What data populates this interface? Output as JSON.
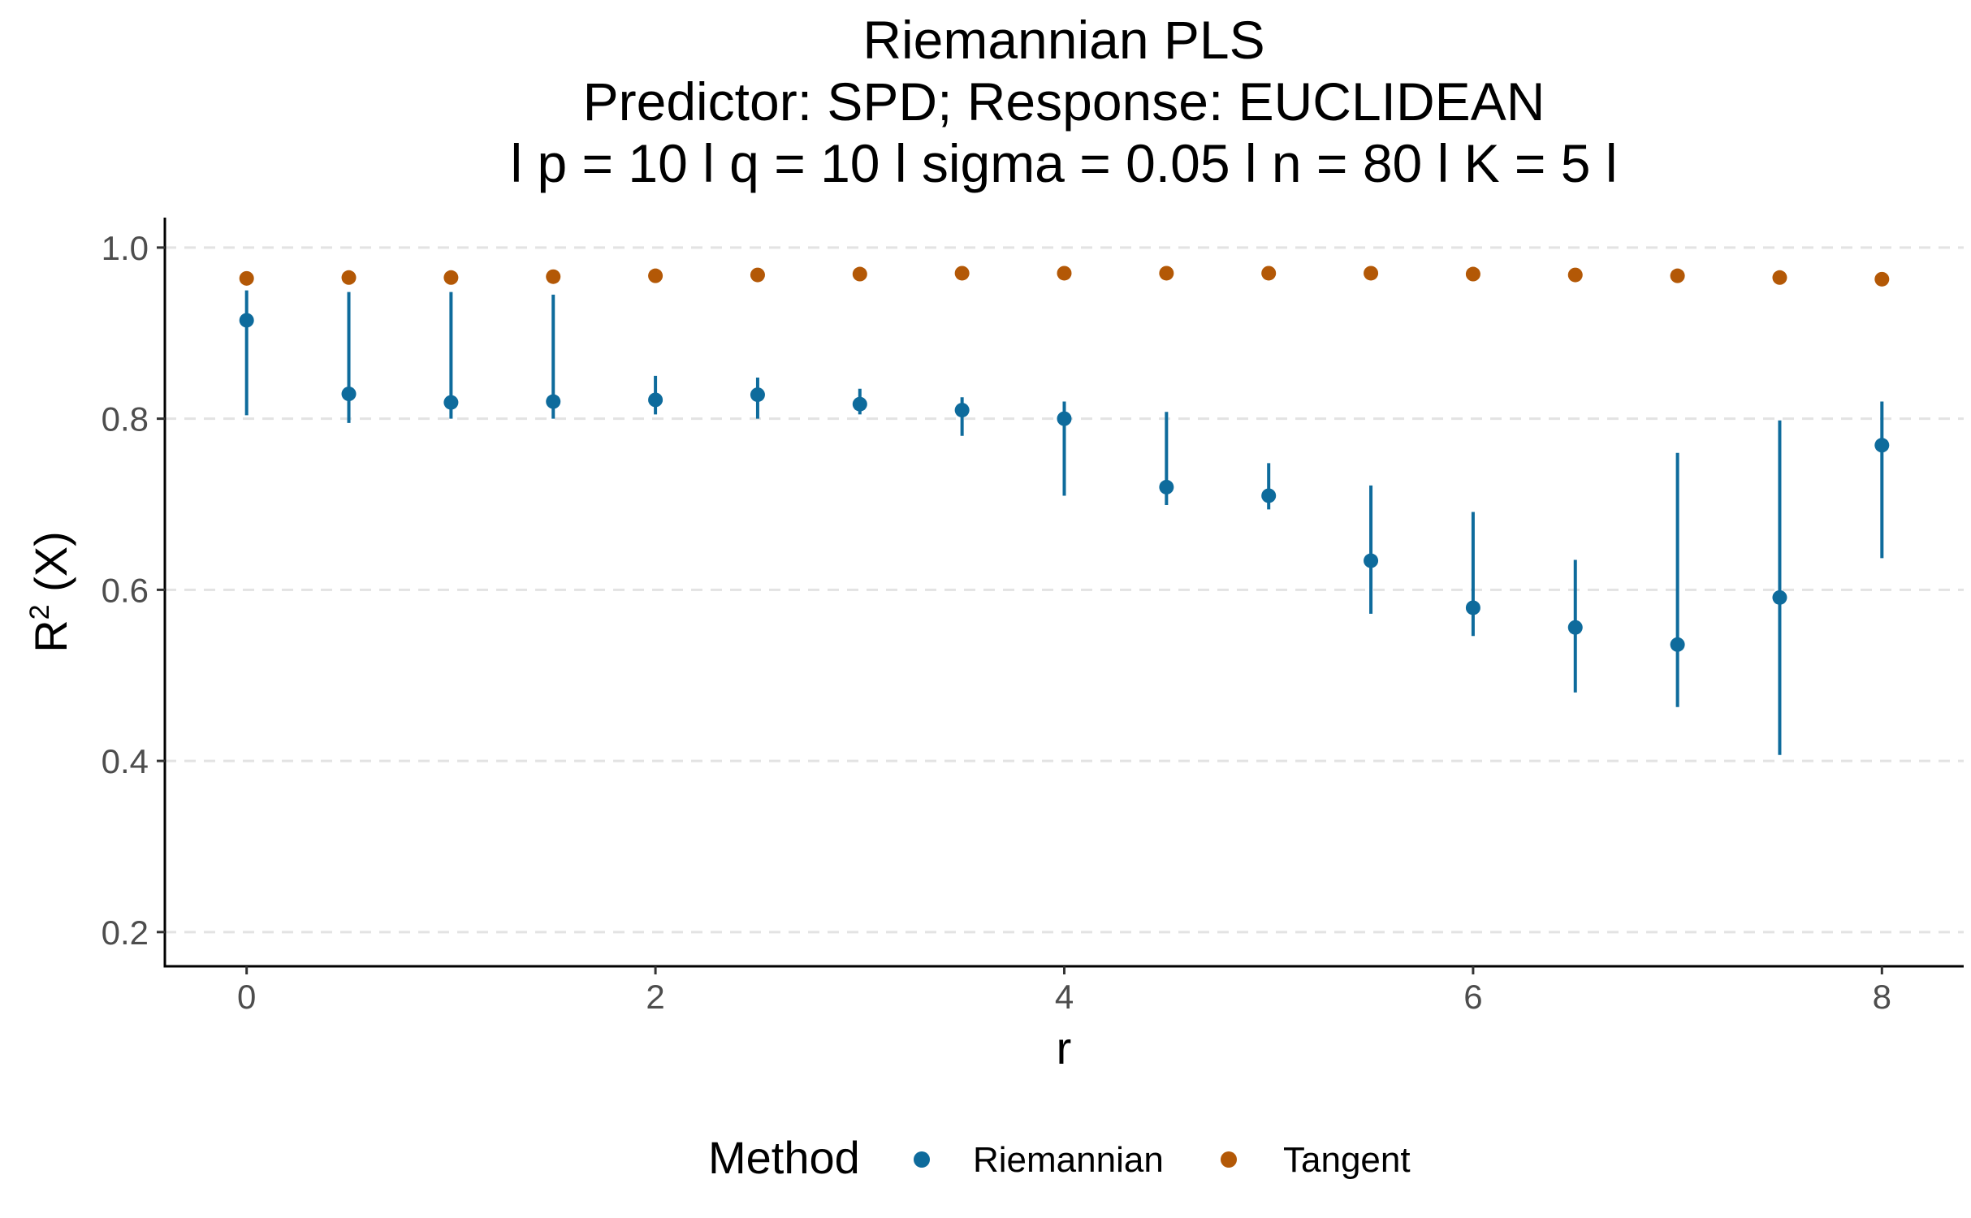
{
  "chart_data": {
    "type": "scatter",
    "title": [
      "Riemannian PLS",
      "Predictor: SPD; Response: EUCLIDEAN",
      "l p = 10 l q = 10 l sigma = 0.05 l n = 80 l K = 5 l"
    ],
    "xlabel": "r",
    "ylabel_main": "R",
    "ylabel_sup": "2",
    "ylabel_rest": " (X)",
    "xlim": [
      -0.4,
      8.4
    ],
    "ylim": [
      0.16,
      1.035
    ],
    "xticks": [
      0,
      2,
      4,
      6,
      8
    ],
    "xtick_labels": [
      "0",
      "2",
      "4",
      "6",
      "8"
    ],
    "yticks": [
      0.2,
      0.4,
      0.6,
      0.8,
      1.0
    ],
    "ytick_labels": [
      "0.2",
      "0.4",
      "0.6",
      "0.8",
      "1.0"
    ],
    "grid": "horizontal-major-dashed",
    "legend": {
      "title": "Method",
      "position": "bottom"
    },
    "series": [
      {
        "name": "Riemannian",
        "color": "#0e6b9c",
        "x": [
          0,
          0.5,
          1,
          1.5,
          2,
          2.5,
          3,
          3.5,
          4,
          4.5,
          5,
          5.5,
          6,
          6.5,
          7,
          7.5,
          8
        ],
        "y": [
          0.915,
          0.829,
          0.819,
          0.82,
          0.822,
          0.828,
          0.817,
          0.81,
          0.8,
          0.72,
          0.71,
          0.634,
          0.579,
          0.556,
          0.536,
          0.591,
          0.769
        ],
        "ymin": [
          0.804,
          0.795,
          0.8,
          0.8,
          0.805,
          0.8,
          0.805,
          0.78,
          0.71,
          0.699,
          0.694,
          0.572,
          0.546,
          0.48,
          0.463,
          0.407,
          0.637
        ],
        "ymax": [
          0.95,
          0.948,
          0.948,
          0.945,
          0.85,
          0.848,
          0.835,
          0.825,
          0.82,
          0.808,
          0.748,
          0.722,
          0.691,
          0.635,
          0.76,
          0.798,
          0.82
        ]
      },
      {
        "name": "Tangent",
        "color": "#b35806",
        "x": [
          0,
          0.5,
          1,
          1.5,
          2,
          2.5,
          3,
          3.5,
          4,
          4.5,
          5,
          5.5,
          6,
          6.5,
          7,
          7.5,
          8
        ],
        "y": [
          0.964,
          0.965,
          0.965,
          0.966,
          0.967,
          0.968,
          0.969,
          0.97,
          0.97,
          0.97,
          0.97,
          0.97,
          0.969,
          0.968,
          0.967,
          0.965,
          0.963
        ]
      }
    ]
  }
}
